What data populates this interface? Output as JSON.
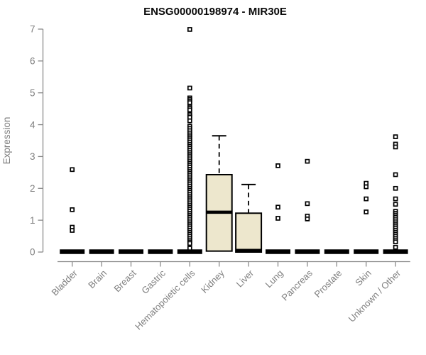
{
  "chart_data": {
    "type": "boxplot",
    "title": "ENSG00000198974 - MIR30E",
    "ylabel": "Expression",
    "xlabel": "",
    "ylim": [
      0,
      7
    ],
    "yticks": [
      0,
      1,
      2,
      3,
      4,
      5,
      6,
      7
    ],
    "grid": false,
    "legend": "none",
    "colors": {
      "box_fill": "#ede7cd",
      "box_stroke": "#000000",
      "outlier": "#000000",
      "axis": "#8a8a8a",
      "tick_label": "#7f7f7f",
      "title": "#0a0a0a",
      "background": "#ffffff"
    },
    "categories": [
      {
        "label": "Bladder",
        "collapsed": true,
        "outliers": [
          2.59,
          1.33,
          0.78,
          0.68
        ]
      },
      {
        "label": "Brain",
        "collapsed": true,
        "outliers": []
      },
      {
        "label": "Breast",
        "collapsed": true,
        "outliers": []
      },
      {
        "label": "Gastric",
        "collapsed": true,
        "outliers": []
      },
      {
        "label": "Hematopoietic cells",
        "collapsed": true,
        "outliers": [
          6.99,
          5.15,
          4.84,
          4.79,
          4.74,
          4.69,
          4.56,
          4.51,
          4.46,
          4.33,
          4.28,
          4.23,
          4.12,
          3.95,
          3.88,
          3.81,
          3.74,
          3.68,
          3.62,
          3.56,
          3.5,
          3.44,
          3.38,
          3.32,
          3.26,
          3.2,
          3.14,
          3.08,
          3.02,
          2.96,
          2.9,
          2.84,
          2.78,
          2.72,
          2.66,
          2.6,
          2.54,
          2.48,
          2.42,
          2.36,
          2.3,
          2.24,
          2.18,
          2.12,
          2.06,
          2.0,
          1.94,
          1.88,
          1.82,
          1.76,
          1.7,
          1.64,
          1.58,
          1.52,
          1.46,
          1.4,
          1.34,
          1.28,
          1.22,
          1.16,
          1.1,
          1.04,
          0.98,
          0.92,
          0.86,
          0.8,
          0.74,
          0.68,
          0.62,
          0.56,
          0.5,
          0.44,
          0.38,
          0.32,
          0.27,
          0.12
        ]
      },
      {
        "label": "Kidney",
        "collapsed": false,
        "box": {
          "q1": 0.03,
          "median": 1.25,
          "q3": 2.43,
          "whisker_low": 0.03,
          "whisker_high": 3.65
        },
        "outliers": []
      },
      {
        "label": "Liver",
        "collapsed": false,
        "box": {
          "q1": 0.0,
          "median": 0.05,
          "q3": 1.22,
          "whisker_low": 0.0,
          "whisker_high": 2.12
        },
        "outliers": []
      },
      {
        "label": "Lung",
        "collapsed": true,
        "outliers": [
          2.71,
          1.41,
          1.06
        ]
      },
      {
        "label": "Pancreas",
        "collapsed": true,
        "outliers": [
          2.85,
          1.52,
          1.13,
          1.04
        ]
      },
      {
        "label": "Prostate",
        "collapsed": true,
        "outliers": []
      },
      {
        "label": "Skin",
        "collapsed": true,
        "outliers": [
          2.16,
          2.05,
          1.67,
          1.26
        ]
      },
      {
        "label": "Unknown / Other",
        "collapsed": true,
        "outliers": [
          3.62,
          3.39,
          3.3,
          2.43,
          2.0,
          1.67,
          1.5,
          1.28,
          1.22,
          1.16,
          1.1,
          1.04,
          0.98,
          0.92,
          0.86,
          0.8,
          0.74,
          0.68,
          0.62,
          0.56,
          0.5,
          0.44,
          0.38,
          0.32,
          0.15
        ]
      }
    ]
  }
}
